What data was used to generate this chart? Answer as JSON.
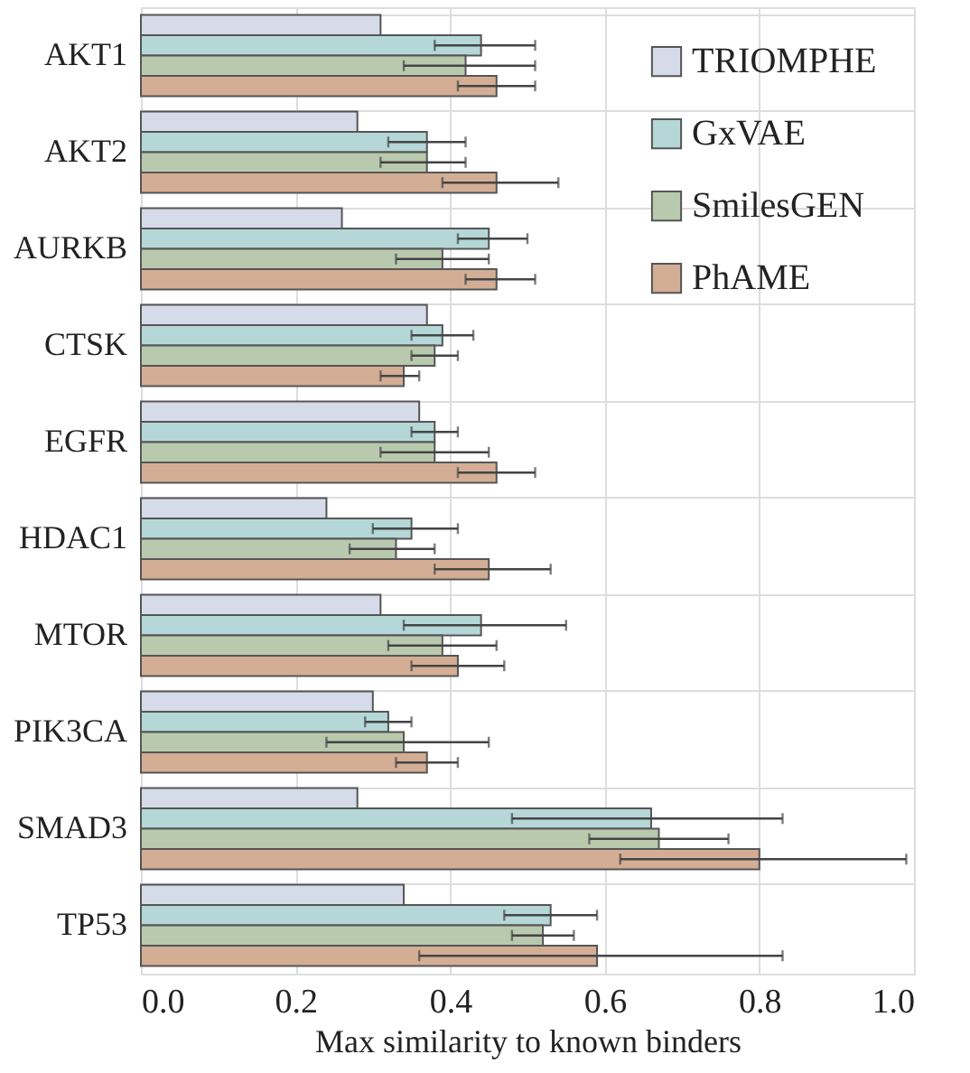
{
  "chart_data": {
    "type": "bar",
    "orientation": "horizontal",
    "xlabel": "Max similarity to known binders",
    "categories": [
      "AKT1",
      "AKT2",
      "AURKB",
      "CTSK",
      "EGFR",
      "HDAC1",
      "MTOR",
      "PIK3CA",
      "SMAD3",
      "TP53"
    ],
    "series": [
      {
        "name": "TRIOMPHE",
        "color": "#d6dbe9",
        "values": [
          0.31,
          0.28,
          0.26,
          0.37,
          0.36,
          0.24,
          0.31,
          0.3,
          0.28,
          0.34
        ]
      },
      {
        "name": "GxVAE",
        "color": "#b5d7d7",
        "values": [
          0.44,
          0.37,
          0.45,
          0.39,
          0.38,
          0.35,
          0.44,
          0.32,
          0.66,
          0.53
        ],
        "errors": [
          [
            0.38,
            0.51
          ],
          [
            0.32,
            0.42
          ],
          [
            0.41,
            0.5
          ],
          [
            0.35,
            0.43
          ],
          [
            0.35,
            0.41
          ],
          [
            0.3,
            0.41
          ],
          [
            0.34,
            0.55
          ],
          [
            0.29,
            0.35
          ],
          [
            0.48,
            0.83
          ],
          [
            0.47,
            0.59
          ]
        ]
      },
      {
        "name": "SmilesGEN",
        "color": "#b9c9ae",
        "values": [
          0.42,
          0.37,
          0.39,
          0.38,
          0.38,
          0.33,
          0.39,
          0.34,
          0.67,
          0.52
        ],
        "errors": [
          [
            0.34,
            0.51
          ],
          [
            0.31,
            0.42
          ],
          [
            0.33,
            0.45
          ],
          [
            0.35,
            0.41
          ],
          [
            0.31,
            0.45
          ],
          [
            0.27,
            0.38
          ],
          [
            0.32,
            0.46
          ],
          [
            0.24,
            0.45
          ],
          [
            0.58,
            0.76
          ],
          [
            0.48,
            0.56
          ]
        ]
      },
      {
        "name": "PhAME",
        "color": "#d3ae95",
        "values": [
          0.46,
          0.46,
          0.46,
          0.34,
          0.46,
          0.45,
          0.41,
          0.37,
          0.8,
          0.59
        ],
        "errors": [
          [
            0.41,
            0.51
          ],
          [
            0.39,
            0.54
          ],
          [
            0.42,
            0.51
          ],
          [
            0.31,
            0.36
          ],
          [
            0.41,
            0.51
          ],
          [
            0.38,
            0.53
          ],
          [
            0.35,
            0.47
          ],
          [
            0.33,
            0.41
          ],
          [
            0.62,
            0.99
          ],
          [
            0.36,
            0.83
          ]
        ]
      }
    ],
    "xlim": [
      0,
      1
    ],
    "xticks": [
      {
        "value": 0,
        "label": "0.0"
      },
      0.2,
      0.4,
      0.6,
      0.8,
      {
        "value": 1,
        "label": "1.0"
      }
    ],
    "grid": true,
    "legend": "top right"
  }
}
